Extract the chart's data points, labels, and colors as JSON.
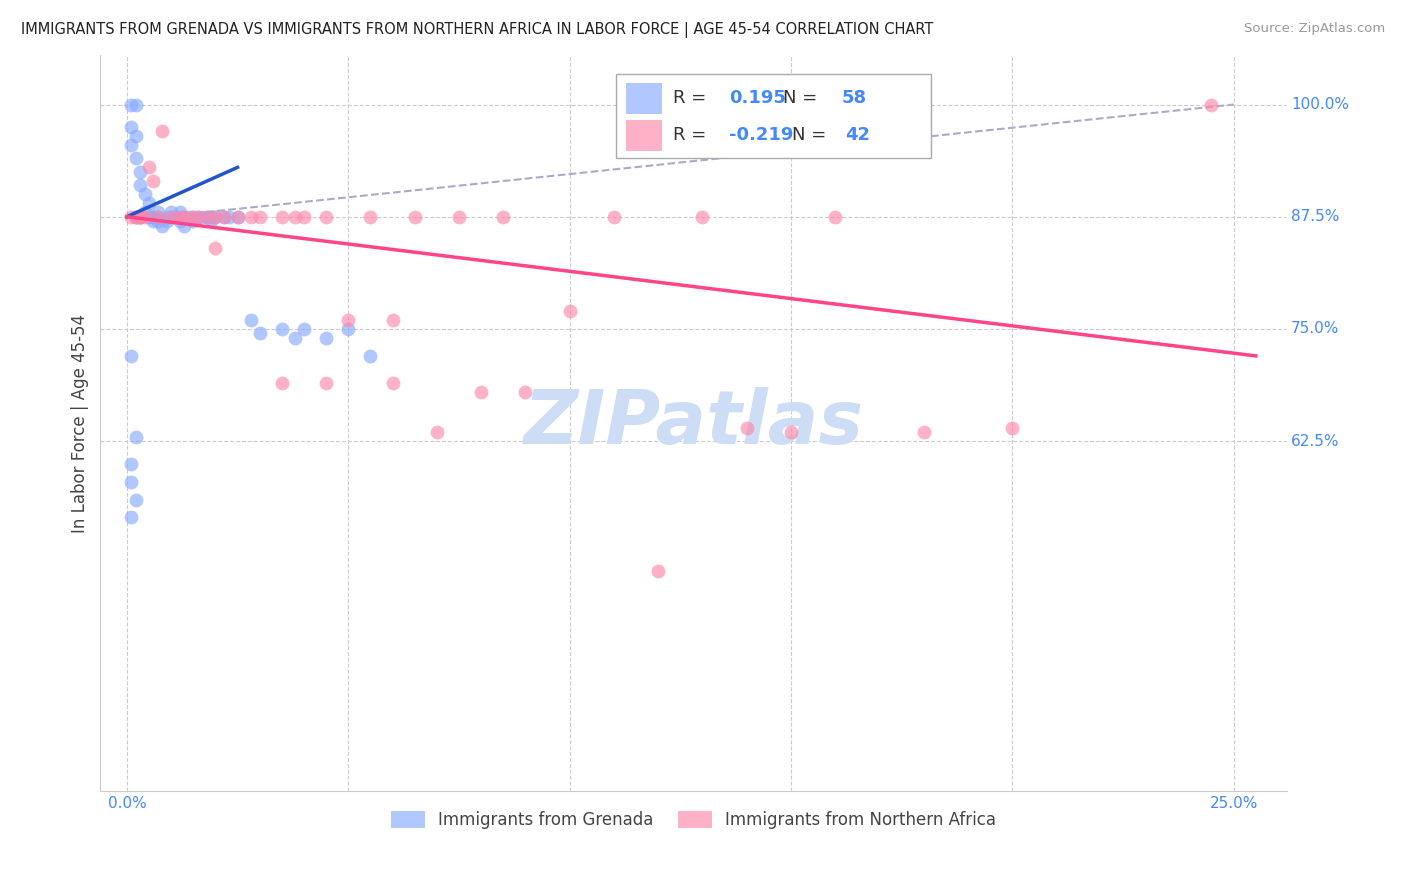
{
  "title": "IMMIGRANTS FROM GRENADA VS IMMIGRANTS FROM NORTHERN AFRICA IN LABOR FORCE | AGE 45-54 CORRELATION CHART",
  "source": "Source: ZipAtlas.com",
  "ylabel": "In Labor Force | Age 45-54",
  "legend_grenada_R": "0.195",
  "legend_grenada_N": "58",
  "legend_africa_R": "-0.219",
  "legend_africa_N": "42",
  "blue_color": "#88aaff",
  "pink_color": "#ff88aa",
  "blue_line_color": "#2255cc",
  "pink_line_color": "#ff4488",
  "dashed_line_color": "#aaaacc",
  "tick_label_color": "#4488ff",
  "grid_color": "#cccccc",
  "watermark_color": "#ccddf5",
  "background_color": "#ffffff",
  "xlim": [
    -0.006,
    0.262
  ],
  "ylim": [
    0.235,
    1.055
  ],
  "grenada_x": [
    0.001,
    0.002,
    0.001,
    0.002,
    0.001,
    0.002,
    0.003,
    0.003,
    0.004,
    0.005,
    0.004,
    0.003,
    0.006,
    0.007,
    0.006,
    0.008,
    0.007,
    0.009,
    0.01,
    0.009,
    0.011,
    0.01,
    0.012,
    0.013,
    0.012,
    0.014,
    0.013,
    0.015,
    0.016,
    0.015,
    0.017,
    0.018,
    0.019,
    0.02,
    0.019,
    0.022,
    0.023,
    0.025,
    0.028,
    0.03,
    0.035,
    0.038,
    0.04,
    0.045,
    0.05,
    0.055,
    0.005,
    0.006,
    0.007,
    0.001,
    0.002,
    0.001,
    0.001,
    0.002,
    0.001,
    0.002,
    0.003
  ],
  "grenada_y": [
    1.0,
    1.0,
    0.975,
    0.965,
    0.955,
    0.94,
    0.925,
    0.91,
    0.9,
    0.89,
    0.88,
    0.875,
    0.875,
    0.875,
    0.87,
    0.865,
    0.88,
    0.875,
    0.875,
    0.87,
    0.875,
    0.88,
    0.88,
    0.875,
    0.87,
    0.875,
    0.865,
    0.875,
    0.875,
    0.87,
    0.875,
    0.875,
    0.875,
    0.875,
    0.87,
    0.875,
    0.875,
    0.875,
    0.76,
    0.745,
    0.75,
    0.74,
    0.75,
    0.74,
    0.75,
    0.72,
    0.875,
    0.875,
    0.87,
    0.72,
    0.63,
    0.6,
    0.58,
    0.56,
    0.54,
    0.875,
    0.875
  ],
  "africa_x": [
    0.001,
    0.002,
    0.002,
    0.003,
    0.003,
    0.004,
    0.005,
    0.006,
    0.007,
    0.008,
    0.01,
    0.012,
    0.013,
    0.015,
    0.016,
    0.018,
    0.02,
    0.022,
    0.025,
    0.028,
    0.03,
    0.035,
    0.038,
    0.04,
    0.045,
    0.05,
    0.055,
    0.06,
    0.065,
    0.07,
    0.075,
    0.085,
    0.09,
    0.1,
    0.11,
    0.13,
    0.14,
    0.15,
    0.16,
    0.18,
    0.245
  ],
  "africa_y": [
    0.875,
    0.875,
    0.875,
    0.875,
    0.875,
    0.875,
    0.93,
    0.915,
    0.875,
    0.97,
    0.875,
    0.875,
    0.875,
    0.875,
    0.875,
    0.875,
    0.875,
    0.875,
    0.875,
    0.875,
    0.875,
    0.875,
    0.875,
    0.875,
    0.875,
    0.76,
    0.875,
    0.76,
    0.875,
    0.635,
    0.875,
    0.875,
    0.68,
    0.77,
    0.875,
    0.875,
    0.64,
    0.635,
    0.875,
    0.635,
    1.0
  ],
  "africa_extra_x": [
    0.02,
    0.035,
    0.045,
    0.06,
    0.08,
    0.12,
    0.2
  ],
  "africa_extra_y": [
    0.84,
    0.69,
    0.69,
    0.69,
    0.68,
    0.48,
    0.64
  ],
  "grenada_line_x": [
    0.0,
    0.025
  ],
  "grenada_line_y": [
    0.875,
    0.93
  ],
  "africa_line_x": [
    0.0,
    0.255
  ],
  "africa_line_y": [
    0.875,
    0.72
  ],
  "dash_line_x": [
    0.008,
    0.25
  ],
  "dash_line_y": [
    0.875,
    1.0
  ]
}
